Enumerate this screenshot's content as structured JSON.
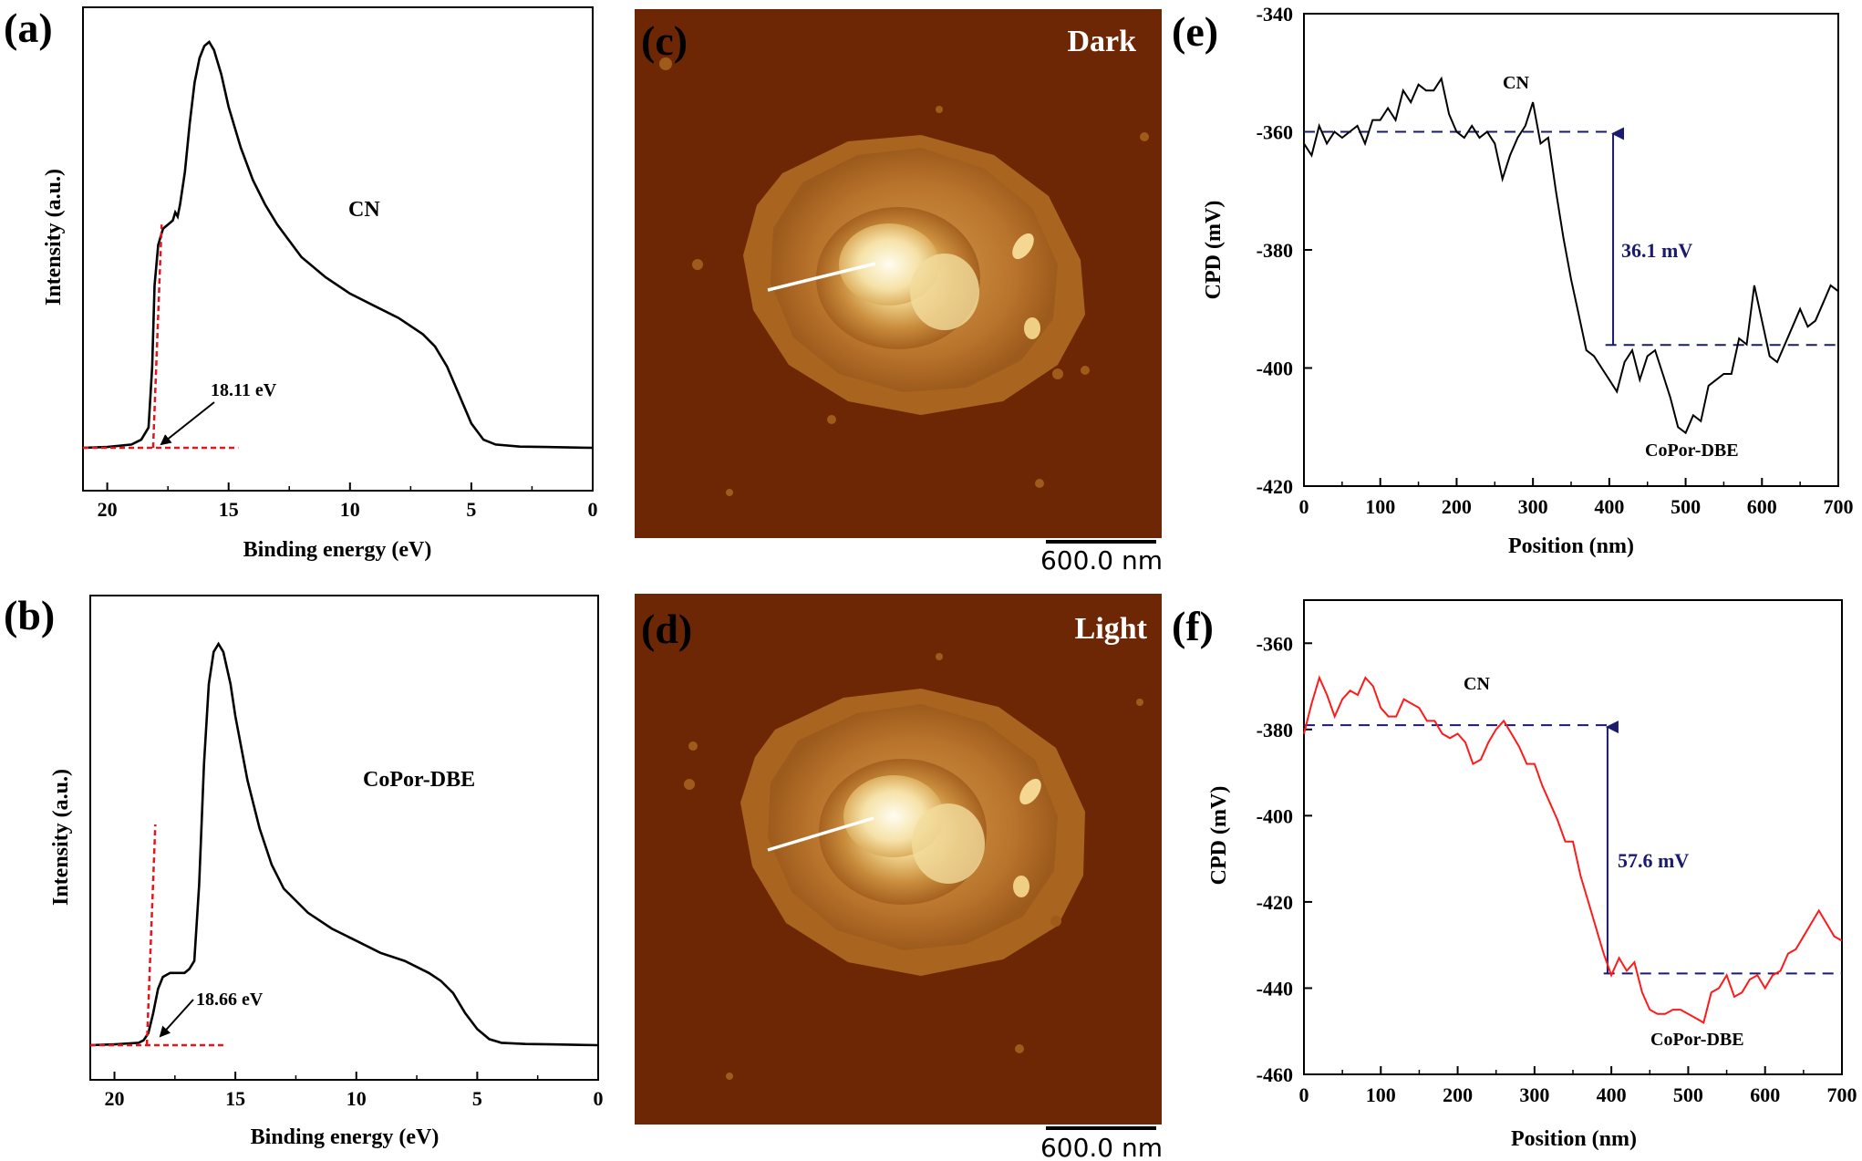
{
  "panels": {
    "a": {
      "letter": "(a)",
      "xlabel": "Binding energy (eV)",
      "ylabel": "Intensity (a.u.)",
      "label": "CN",
      "annotation": "18.11 eV"
    },
    "b": {
      "letter": "(b)",
      "xlabel": "Binding energy (eV)",
      "ylabel": "Intensity (a.u.)",
      "label": "CoPor-DBE",
      "annotation": "18.66 eV"
    },
    "c": {
      "letter": "(c)",
      "label": "Dark",
      "scale_bar": "600.0 nm"
    },
    "d": {
      "letter": "(d)",
      "label": "Light",
      "scale_bar": "600.0 nm"
    },
    "e": {
      "letter": "(e)",
      "xlabel": "Position (nm)",
      "ylabel": "CPD (mV)",
      "top_label": "CN",
      "bottom_label": "CoPor-DBE",
      "delta": "36.1 mV"
    },
    "f": {
      "letter": "(f)",
      "xlabel": "Position (nm)",
      "ylabel": "CPD (mV)",
      "top_label": "CN",
      "bottom_label": "CoPor-DBE",
      "delta": "57.6 mV"
    }
  },
  "colors": {
    "curve": "#000000",
    "fit_line": "#e8141b",
    "ref_line": "#1a1a6e",
    "red_curve": "#ff1a1a",
    "afm_dark": "#6b2503",
    "afm_light": "#f7eec8"
  },
  "chart_data": [
    {
      "id": "a",
      "type": "line",
      "xlim": [
        21,
        0
      ],
      "xticks": [
        20,
        15,
        10,
        5,
        0
      ],
      "xlabel": "Binding energy (eV)",
      "ylabel": "Intensity (a.u.)",
      "cutoff_eV": 18.11,
      "y_ticks_shown": false,
      "series": [
        {
          "x": [
            21,
            20,
            19,
            18.6,
            18.3,
            18.15,
            18.05,
            17.9,
            17.7,
            17.5,
            17.3,
            17.2,
            17.1,
            17.0,
            16.8,
            16.6,
            16.4,
            16.2,
            16.0,
            15.8,
            15.6,
            15.3,
            15.0,
            14.5,
            14.0,
            13.5,
            13.0,
            12.0,
            11.0,
            10.0,
            9.0,
            8.0,
            7.0,
            6.5,
            6.0,
            5.5,
            5.0,
            4.5,
            4.0,
            3.0,
            2.0,
            1.0,
            0
          ],
          "y": [
            0.0,
            0.002,
            0.008,
            0.02,
            0.05,
            0.2,
            0.4,
            0.5,
            0.54,
            0.55,
            0.56,
            0.58,
            0.57,
            0.6,
            0.68,
            0.8,
            0.9,
            0.96,
            0.99,
            1.0,
            0.98,
            0.92,
            0.84,
            0.74,
            0.66,
            0.6,
            0.55,
            0.47,
            0.42,
            0.38,
            0.35,
            0.32,
            0.28,
            0.25,
            0.2,
            0.13,
            0.06,
            0.02,
            0.008,
            0.003,
            0.002,
            0.001,
            0.0
          ]
        }
      ]
    },
    {
      "id": "b",
      "type": "line",
      "xlim": [
        21,
        0
      ],
      "xticks": [
        20,
        15,
        10,
        5,
        0
      ],
      "xlabel": "Binding energy (eV)",
      "ylabel": "Intensity (a.u.)",
      "cutoff_eV": 18.66,
      "y_ticks_shown": false,
      "series": [
        {
          "x": [
            21,
            20,
            19,
            18.8,
            18.6,
            18.4,
            18.2,
            18.0,
            17.7,
            17.4,
            17.1,
            16.9,
            16.7,
            16.5,
            16.3,
            16.1,
            15.9,
            15.7,
            15.5,
            15.2,
            15.0,
            14.5,
            14.0,
            13.5,
            13.0,
            12.0,
            11.0,
            10.0,
            9.0,
            8.0,
            7.0,
            6.5,
            6.0,
            5.5,
            5.0,
            4.5,
            4.0,
            3.0,
            2.0,
            1.0,
            0
          ],
          "y": [
            0.0,
            0.002,
            0.006,
            0.012,
            0.03,
            0.08,
            0.14,
            0.17,
            0.18,
            0.18,
            0.18,
            0.19,
            0.21,
            0.4,
            0.7,
            0.9,
            0.98,
            1.0,
            0.98,
            0.9,
            0.82,
            0.66,
            0.54,
            0.45,
            0.39,
            0.33,
            0.29,
            0.26,
            0.23,
            0.21,
            0.18,
            0.16,
            0.13,
            0.08,
            0.04,
            0.015,
            0.006,
            0.003,
            0.002,
            0.001,
            0.0
          ]
        }
      ]
    },
    {
      "id": "e",
      "type": "line",
      "xlim": [
        0,
        700
      ],
      "ylim": [
        -420,
        -340
      ],
      "xticks": [
        0,
        100,
        200,
        300,
        400,
        500,
        600,
        700
      ],
      "yticks": [
        -340,
        -360,
        -380,
        -400,
        -420
      ],
      "xlabel": "Position (nm)",
      "ylabel": "CPD (mV)",
      "reference_levels": [
        -360,
        -396.1
      ],
      "delta_mV": 36.1,
      "series": [
        {
          "x": [
            0,
            10,
            20,
            30,
            40,
            50,
            60,
            70,
            80,
            90,
            100,
            110,
            120,
            130,
            140,
            150,
            160,
            170,
            180,
            190,
            200,
            210,
            220,
            230,
            240,
            250,
            260,
            270,
            280,
            290,
            300,
            310,
            320,
            330,
            340,
            350,
            360,
            370,
            380,
            390,
            400,
            410,
            420,
            430,
            440,
            450,
            460,
            470,
            480,
            490,
            500,
            510,
            520,
            530,
            540,
            550,
            560,
            570,
            580,
            590,
            600,
            610,
            620,
            630,
            640,
            650,
            660,
            670,
            680,
            690,
            700
          ],
          "y": [
            -362,
            -364,
            -359,
            -362,
            -360,
            -361,
            -360,
            -359,
            -362,
            -358,
            -358,
            -356,
            -358,
            -353,
            -355,
            -352,
            -353,
            -353,
            -351,
            -357,
            -360,
            -361,
            -359,
            -361,
            -360,
            -362,
            -368,
            -364,
            -361,
            -359,
            -355,
            -362,
            -361,
            -370,
            -378,
            -385,
            -391,
            -397,
            -398,
            -400,
            -402,
            -404,
            -399,
            -397,
            -402,
            -398,
            -397,
            -401,
            -405,
            -410,
            -411,
            -408,
            -409,
            -403,
            -402,
            -401,
            -401,
            -395,
            -396,
            -386,
            -392,
            -398,
            -399,
            -396,
            -393,
            -390,
            -393,
            -392,
            -389,
            -386,
            -387
          ]
        }
      ]
    },
    {
      "id": "f",
      "type": "line",
      "xlim": [
        0,
        700
      ],
      "ylim": [
        -460,
        -350
      ],
      "xticks": [
        0,
        100,
        200,
        300,
        400,
        500,
        600,
        700
      ],
      "yticks": [
        -360,
        -380,
        -400,
        -420,
        -440,
        -460
      ],
      "xlabel": "Position (nm)",
      "ylabel": "CPD (mV)",
      "reference_levels": [
        -379,
        -436.6
      ],
      "delta_mV": 57.6,
      "series": [
        {
          "x": [
            0,
            10,
            20,
            30,
            40,
            50,
            60,
            70,
            80,
            90,
            100,
            110,
            120,
            130,
            140,
            150,
            160,
            170,
            180,
            190,
            200,
            210,
            220,
            230,
            240,
            250,
            260,
            270,
            280,
            290,
            300,
            310,
            320,
            330,
            340,
            350,
            360,
            370,
            380,
            390,
            400,
            410,
            420,
            430,
            440,
            450,
            460,
            470,
            480,
            490,
            500,
            510,
            520,
            530,
            540,
            550,
            560,
            570,
            580,
            590,
            600,
            610,
            620,
            630,
            640,
            650,
            660,
            670,
            680,
            690,
            700
          ],
          "y": [
            -381,
            -374,
            -368,
            -372,
            -377,
            -373,
            -371,
            -372,
            -368,
            -370,
            -375,
            -377,
            -377,
            -373,
            -374,
            -375,
            -378,
            -378,
            -381,
            -382,
            -381,
            -383,
            -388,
            -387,
            -383,
            -380,
            -378,
            -381,
            -384,
            -388,
            -388,
            -393,
            -397,
            -401,
            -406,
            -406,
            -414,
            -420,
            -426,
            -432,
            -437,
            -433,
            -436,
            -434,
            -441,
            -445,
            -446,
            -446,
            -445,
            -445,
            -446,
            -447,
            -448,
            -441,
            -440,
            -437,
            -442,
            -441,
            -438,
            -437,
            -440,
            -437,
            -436,
            -432,
            -431,
            -428,
            -425,
            -422,
            -425,
            -428,
            -429
          ]
        }
      ]
    }
  ]
}
